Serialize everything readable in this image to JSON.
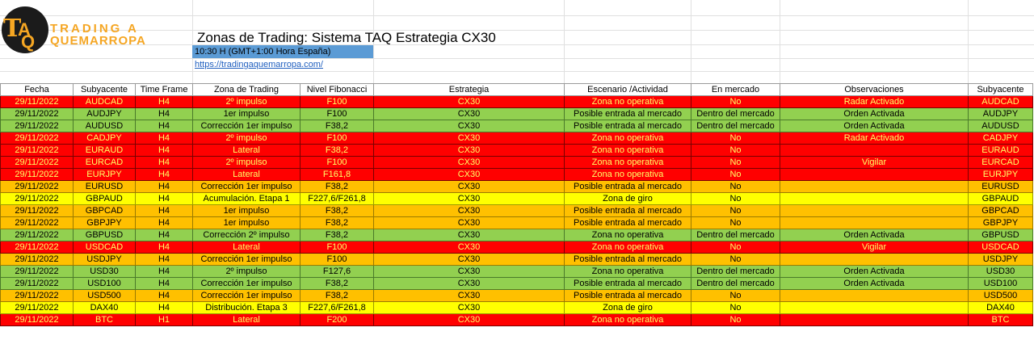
{
  "logo": {
    "line1": "TRADING A",
    "line2": "QUEMARROPA",
    "mark_t": "T",
    "mark_a": "A",
    "mark_q": "Q"
  },
  "title": "Zonas de Trading: Sistema TAQ Estrategia CX30",
  "time": "10:30 H (GMT+1:00 Hora España)",
  "link": "https://tradingaquemarropa.com/",
  "headers": [
    "Fecha",
    "Subyacente",
    "Time Frame",
    "Zona de Trading",
    "Nivel Fibonacci",
    "Estrategia",
    "Escenario /Actividad",
    "En mercado",
    "Observaciones",
    "Subyacente"
  ],
  "row_colors": {
    "red": "#ff0000",
    "green": "#92d050",
    "orange": "#ffc000",
    "yellow": "#ffff00"
  },
  "rows": [
    {
      "color": "r",
      "cells": [
        "29/11/2022",
        "AUDCAD",
        "H4",
        "2º impulso",
        "F100",
        "CX30",
        "Zona no operativa",
        "No",
        "Radar Activado",
        "AUDCAD"
      ]
    },
    {
      "color": "g",
      "cells": [
        "29/11/2022",
        "AUDJPY",
        "H4",
        "1er impulso",
        "F100",
        "CX30",
        "Posible entrada al mercado",
        "Dentro del mercado",
        "Orden Activada",
        "AUDJPY"
      ]
    },
    {
      "color": "g",
      "cells": [
        "29/11/2022",
        "AUDUSD",
        "H4",
        "Corrección 1er impulso",
        "F38,2",
        "CX30",
        "Posible entrada al mercado",
        "Dentro del mercado",
        "Orden Activada",
        "AUDUSD"
      ]
    },
    {
      "color": "r",
      "cells": [
        "29/11/2022",
        "CADJPY",
        "H4",
        "2º impulso",
        "F100",
        "CX30",
        "Zona no operativa",
        "No",
        "Radar Activado",
        "CADJPY"
      ]
    },
    {
      "color": "r",
      "cells": [
        "29/11/2022",
        "EURAUD",
        "H4",
        "Lateral",
        "F38,2",
        "CX30",
        "Zona no operativa",
        "No",
        "",
        "EURAUD"
      ]
    },
    {
      "color": "r",
      "cells": [
        "29/11/2022",
        "EURCAD",
        "H4",
        "2º impulso",
        "F100",
        "CX30",
        "Zona no operativa",
        "No",
        "Vigilar",
        "EURCAD"
      ]
    },
    {
      "color": "r",
      "cells": [
        "29/11/2022",
        "EURJPY",
        "H4",
        "Lateral",
        "F161,8",
        "CX30",
        "Zona no operativa",
        "No",
        "",
        "EURJPY"
      ]
    },
    {
      "color": "o",
      "cells": [
        "29/11/2022",
        "EURUSD",
        "H4",
        "Corrección 1er impulso",
        "F38,2",
        "CX30",
        "Posible entrada al mercado",
        "No",
        "",
        "EURUSD"
      ]
    },
    {
      "color": "y",
      "cells": [
        "29/11/2022",
        "GBPAUD",
        "H4",
        "Acumulación. Etapa 1",
        "F227,6/F261,8",
        "CX30",
        "Zona de giro",
        "No",
        "",
        "GBPAUD"
      ]
    },
    {
      "color": "o",
      "cells": [
        "29/11/2022",
        "GBPCAD",
        "H4",
        "1er impulso",
        "F38,2",
        "CX30",
        "Posible entrada al mercado",
        "No",
        "",
        "GBPCAD"
      ]
    },
    {
      "color": "o",
      "cells": [
        "29/11/2022",
        "GBPJPY",
        "H4",
        "1er impulso",
        "F38,2",
        "CX30",
        "Posible entrada al mercado",
        "No",
        "",
        "GBPJPY"
      ]
    },
    {
      "color": "g",
      "cells": [
        "29/11/2022",
        "GBPUSD",
        "H4",
        "Corrección 2º impulso",
        "F38,2",
        "CX30",
        "Zona no operativa",
        "Dentro del mercado",
        "Orden Activada",
        "GBPUSD"
      ]
    },
    {
      "color": "r",
      "cells": [
        "29/11/2022",
        "USDCAD",
        "H4",
        "Lateral",
        "F100",
        "CX30",
        "Zona no operativa",
        "No",
        "Vigilar",
        "USDCAD"
      ]
    },
    {
      "color": "o",
      "cells": [
        "29/11/2022",
        "USDJPY",
        "H4",
        "Corrección 1er impulso",
        "F100",
        "CX30",
        "Posible entrada al mercado",
        "No",
        "",
        "USDJPY"
      ]
    },
    {
      "color": "g",
      "cells": [
        "29/11/2022",
        "USD30",
        "H4",
        "2º impulso",
        "F127,6",
        "CX30",
        "Zona no operativa",
        "Dentro del mercado",
        "Orden Activada",
        "USD30"
      ]
    },
    {
      "color": "g",
      "cells": [
        "29/11/2022",
        "USD100",
        "H4",
        "Corrección 1er impulso",
        "F38,2",
        "CX30",
        "Posible entrada al mercado",
        "Dentro del mercado",
        "Orden Activada",
        "USD100"
      ]
    },
    {
      "color": "o",
      "cells": [
        "29/11/2022",
        "USD500",
        "H4",
        "Corrección 1er impulso",
        "F38,2",
        "CX30",
        "Posible entrada al mercado",
        "No",
        "",
        "USD500"
      ]
    },
    {
      "color": "y",
      "cells": [
        "29/11/2022",
        "DAX40",
        "H4",
        "Distribución. Etapa 3",
        "F227,6/F261,8",
        "CX30",
        "Zona de giro",
        "No",
        "",
        "DAX40"
      ]
    },
    {
      "color": "r",
      "cells": [
        "29/11/2022",
        "BTC",
        "H1",
        "Lateral",
        "F200",
        "CX30",
        "Zona no operativa",
        "No",
        "",
        "BTC"
      ]
    }
  ]
}
